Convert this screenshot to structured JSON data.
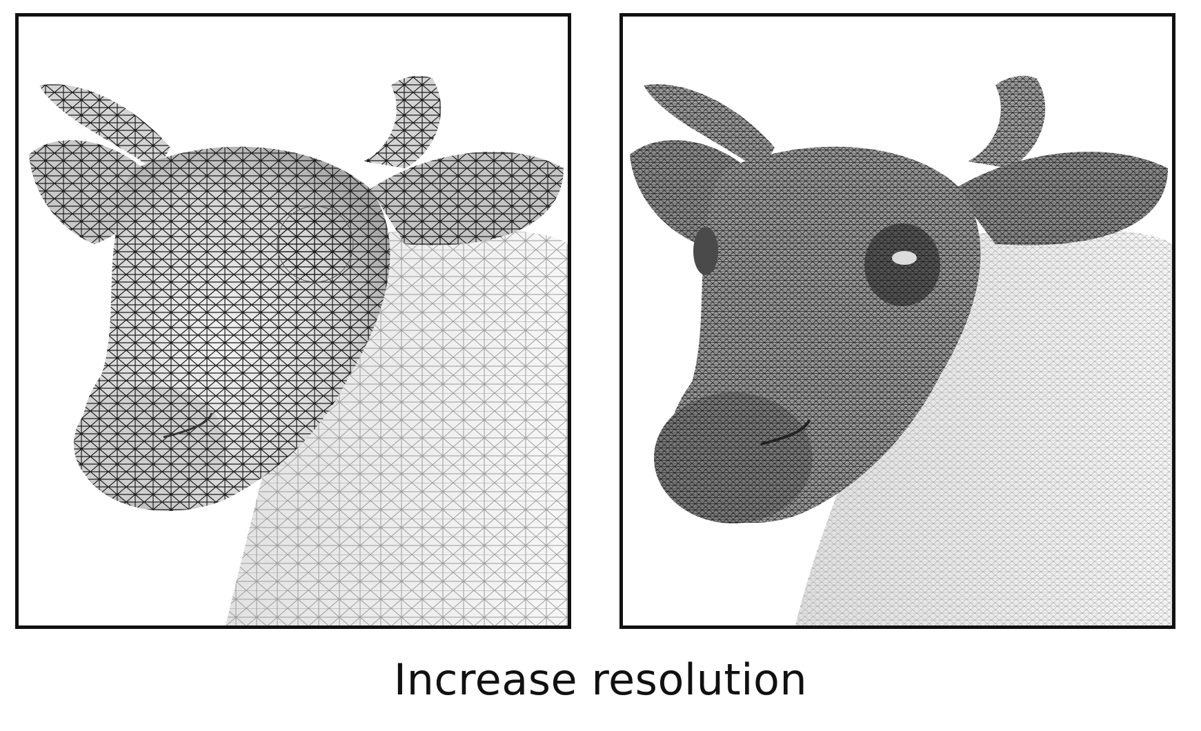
{
  "caption": "Increase resolution",
  "colors": {
    "frame": "#111111",
    "mesh_dark": "#1a1a1a",
    "surface": "#cfcfcf",
    "background": "#ffffff"
  },
  "panels": [
    {
      "name": "coarse-mesh-panel",
      "icon": "cow-mesh-coarse",
      "mesh_density": "coarse"
    },
    {
      "name": "fine-mesh-panel",
      "icon": "cow-mesh-fine",
      "mesh_density": "fine"
    }
  ]
}
